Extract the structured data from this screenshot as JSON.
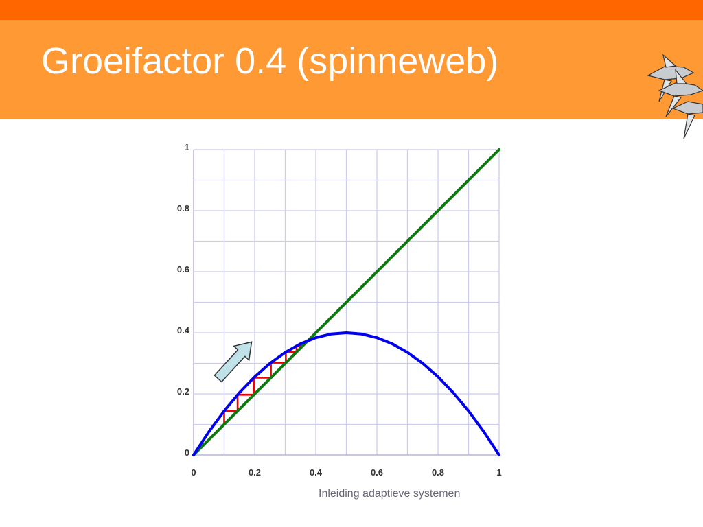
{
  "slide": {
    "title": "Groeifactor 0.4 (spinneweb)",
    "footer": "Inleiding adaptieve systemen",
    "logo_icon": "flying-fish-logo-icon"
  },
  "colors": {
    "top_strip": "#ff6600",
    "title_band": "#ff9933",
    "title_text": "#ffffff",
    "grid": "#ccccee",
    "parabola": "#0000ee",
    "identity_line": "#117711",
    "cobweb": "#ee0000",
    "arrow_fill": "#bfe3e8",
    "arrow_stroke": "#333333"
  },
  "chart_data": {
    "type": "line",
    "title": "",
    "xlabel": "",
    "ylabel": "",
    "xlim": [
      0,
      1
    ],
    "ylim": [
      0,
      1
    ],
    "grid": true,
    "x_ticks": [
      0,
      0.2,
      0.4,
      0.6,
      0.8,
      1
    ],
    "x_tick_labels": [
      "0",
      "0.2",
      "0.4",
      "0.6",
      "0.8",
      "1"
    ],
    "y_ticks": [
      0,
      0.2,
      0.4,
      0.6,
      0.8,
      1
    ],
    "y_tick_labels": [
      "0",
      "0.2",
      "0.4",
      "0.6",
      "0.8",
      "1"
    ],
    "growth_factor": 0.4,
    "curves": {
      "parabola": {
        "equation": "y = 1.6 x (1 - x)",
        "x": [
          0,
          0.05,
          0.1,
          0.15,
          0.2,
          0.25,
          0.3,
          0.35,
          0.4,
          0.45,
          0.5,
          0.55,
          0.6,
          0.65,
          0.7,
          0.75,
          0.8,
          0.85,
          0.9,
          0.95,
          1
        ],
        "y": [
          0,
          0.076,
          0.144,
          0.204,
          0.256,
          0.3,
          0.336,
          0.364,
          0.384,
          0.396,
          0.4,
          0.396,
          0.384,
          0.364,
          0.336,
          0.3,
          0.256,
          0.204,
          0.144,
          0.076,
          0
        ]
      },
      "identity": {
        "equation": "y = x",
        "x": [
          0,
          1
        ],
        "y": [
          0,
          1
        ]
      }
    },
    "cobweb": {
      "x0": 0.1,
      "points": [
        [
          0.1,
          0.1
        ],
        [
          0.1,
          0.144
        ],
        [
          0.144,
          0.144
        ],
        [
          0.144,
          0.197
        ],
        [
          0.197,
          0.197
        ],
        [
          0.197,
          0.253
        ],
        [
          0.253,
          0.253
        ],
        [
          0.253,
          0.302
        ],
        [
          0.302,
          0.302
        ],
        [
          0.302,
          0.337
        ],
        [
          0.337,
          0.337
        ],
        [
          0.337,
          0.358
        ],
        [
          0.358,
          0.358
        ],
        [
          0.358,
          0.368
        ],
        [
          0.368,
          0.368
        ],
        [
          0.368,
          0.372
        ],
        [
          0.372,
          0.372
        ],
        [
          0.372,
          0.374
        ],
        [
          0.374,
          0.374
        ],
        [
          0.374,
          0.375
        ]
      ]
    },
    "annotation": {
      "type": "arrow",
      "direction": "up-right",
      "tail": [
        0.08,
        0.25
      ],
      "head": [
        0.19,
        0.37
      ]
    }
  }
}
